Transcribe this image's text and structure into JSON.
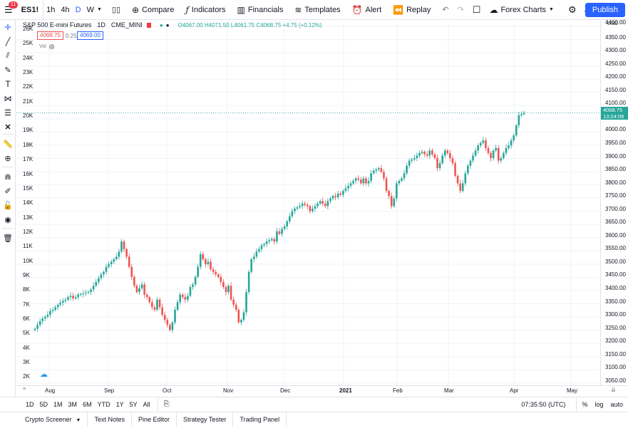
{
  "topbar": {
    "symbol": "ES1!",
    "badge": "11",
    "intervals": [
      "1h",
      "4h",
      "D",
      "W"
    ],
    "compare": "Compare",
    "indicators": "Indicators",
    "financials": "Financials",
    "templates": "Templates",
    "alert": "Alert",
    "replay": "Replay",
    "layout_name": "Forex Charts",
    "publish": "Publish"
  },
  "legend": {
    "title": "S&P 500 E-mini Futures",
    "interval": "1D",
    "exchange": "CME_MINI",
    "ohlc": "O4067.00 H4071.50 L4061.75 C4068.75 +4.75 (+0.12%)",
    "bid": "4068.75",
    "spread": "0.25",
    "ask": "4069.00",
    "vol": "Vol"
  },
  "price_axis": {
    "labels": [
      "4400.00",
      "4350.00",
      "4300.00",
      "4250.00",
      "4200.00",
      "4150.00",
      "4100.00",
      "4050.00",
      "4000.00",
      "3950.00",
      "3900.00",
      "3850.00",
      "3800.00",
      "3750.00",
      "3700.00",
      "3650.00",
      "3600.00",
      "3550.00",
      "3500.00",
      "3450.00",
      "3400.00",
      "3350.00",
      "3300.00",
      "3250.00",
      "3200.00",
      "3150.00",
      "3100.00",
      "3050.00"
    ],
    "currency": "USD",
    "last_price": "4068.75",
    "countdown": "13:24:09"
  },
  "volume_axis": {
    "labels": [
      "26K",
      "25K",
      "24K",
      "23K",
      "22K",
      "21K",
      "20K",
      "19K",
      "18K",
      "17K",
      "16K",
      "15K",
      "14K",
      "13K",
      "12K",
      "11K",
      "10K",
      "9K",
      "8K",
      "7K",
      "6K",
      "5K",
      "4K",
      "3K",
      "2K"
    ]
  },
  "time_axis": {
    "labels": [
      "Aug",
      "Sep",
      "Oct",
      "Nov",
      "Dec",
      "2021",
      "Feb",
      "Mar",
      "Apr",
      "May"
    ]
  },
  "bottombar": {
    "ranges": [
      "1D",
      "5D",
      "1M",
      "3M",
      "6M",
      "YTD",
      "1Y",
      "5Y",
      "All"
    ],
    "clock": "07:35:50 (UTC)",
    "percent": "%",
    "log": "log",
    "auto": "auto"
  },
  "panels": [
    "Crypto Screener",
    "Text Notes",
    "Pine Editor",
    "Strategy Tester",
    "Trading Panel"
  ],
  "colors": {
    "up": "#26a69a",
    "down": "#ef5350",
    "accent": "#2962ff"
  },
  "chart_data": {
    "type": "candlestick",
    "ylim": [
      3025,
      4400
    ],
    "series_close": [
      3215,
      3230,
      3245,
      3255,
      3262,
      3270,
      3285,
      3290,
      3300,
      3310,
      3318,
      3325,
      3330,
      3340,
      3345,
      3335,
      3340,
      3350,
      3352,
      3355,
      3358,
      3360,
      3370,
      3385,
      3400,
      3415,
      3430,
      3440,
      3460,
      3470,
      3480,
      3490,
      3500,
      3520,
      3560,
      3530,
      3500,
      3460,
      3420,
      3385,
      3360,
      3375,
      3390,
      3350,
      3340,
      3320,
      3300,
      3290,
      3330,
      3300,
      3270,
      3250,
      3230,
      3210,
      3240,
      3290,
      3320,
      3350,
      3340,
      3330,
      3345,
      3380,
      3390,
      3420,
      3460,
      3510,
      3490,
      3470,
      3480,
      3450,
      3440,
      3430,
      3420,
      3400,
      3380,
      3360,
      3385,
      3330,
      3310,
      3290,
      3240,
      3250,
      3280,
      3360,
      3440,
      3490,
      3500,
      3520,
      3530,
      3545,
      3550,
      3560,
      3565,
      3570,
      3560,
      3600,
      3590,
      3610,
      3620,
      3640,
      3660,
      3680,
      3690,
      3695,
      3700,
      3710,
      3705,
      3700,
      3680,
      3690,
      3700,
      3710,
      3720,
      3710,
      3700,
      3720,
      3730,
      3740,
      3735,
      3750,
      3745,
      3760,
      3770,
      3780,
      3790,
      3800,
      3810,
      3805,
      3790,
      3810,
      3790,
      3800,
      3830,
      3840,
      3845,
      3850,
      3835,
      3810,
      3760,
      3740,
      3700,
      3730,
      3790,
      3800,
      3810,
      3830,
      3860,
      3880,
      3885,
      3890,
      3900,
      3910,
      3915,
      3905,
      3900,
      3920,
      3905,
      3890,
      3850,
      3870,
      3900,
      3920,
      3910,
      3890,
      3870,
      3820,
      3790,
      3760,
      3790,
      3830,
      3860,
      3880,
      3900,
      3920,
      3940,
      3950,
      3960,
      3930,
      3910,
      3890,
      3920,
      3930,
      3880,
      3890,
      3910,
      3930,
      3940,
      3960,
      3980,
      4020,
      4060,
      4064,
      4068.75
    ]
  }
}
